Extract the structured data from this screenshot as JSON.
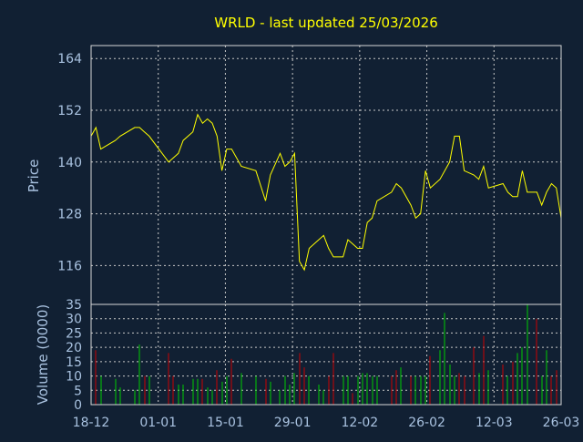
{
  "chart_data": [
    {
      "type": "line",
      "title": "WRLD - last updated 25/03/2026",
      "ylabel": "Price",
      "line_color": "#ffff00",
      "background": "#112033",
      "grid": true,
      "ylim": [
        107,
        167
      ],
      "yticks": [
        116,
        128,
        140,
        152,
        164
      ],
      "y_tick_labels": [
        "116",
        "128",
        "140",
        "152",
        "164"
      ],
      "x": [
        "2025-12-18",
        "2025-12-19",
        "2025-12-20",
        "2025-12-23",
        "2025-12-24",
        "2025-12-27",
        "2025-12-28",
        "2025-12-29",
        "2025-12-30",
        "2026-01-03",
        "2026-01-04",
        "2026-01-05",
        "2026-01-06",
        "2026-01-08",
        "2026-01-09",
        "2026-01-10",
        "2026-01-11",
        "2026-01-12",
        "2026-01-13",
        "2026-01-14",
        "2026-01-15",
        "2026-01-16",
        "2026-01-18",
        "2026-01-21",
        "2026-01-23",
        "2026-01-24",
        "2026-01-26",
        "2026-01-27",
        "2026-01-28",
        "2026-01-29",
        "2026-01-30",
        "2026-01-31",
        "2026-02-01",
        "2026-02-03",
        "2026-02-04",
        "2026-02-05",
        "2026-02-06",
        "2026-02-08",
        "2026-02-09",
        "2026-02-10",
        "2026-02-11",
        "2026-02-12",
        "2026-02-13",
        "2026-02-14",
        "2026-02-15",
        "2026-02-18",
        "2026-02-19",
        "2026-02-20",
        "2026-02-22",
        "2026-02-23",
        "2026-02-24",
        "2026-02-25",
        "2026-02-26",
        "2026-02-28",
        "2026-03-01",
        "2026-03-02",
        "2026-03-03",
        "2026-03-04",
        "2026-03-05",
        "2026-03-07",
        "2026-03-08",
        "2026-03-09",
        "2026-03-10",
        "2026-03-13",
        "2026-03-14",
        "2026-03-15",
        "2026-03-16",
        "2026-03-17",
        "2026-03-18",
        "2026-03-20",
        "2026-03-21",
        "2026-03-22",
        "2026-03-23",
        "2026-03-24",
        "2026-03-25"
      ],
      "values": [
        146,
        148,
        143,
        145,
        146,
        148,
        148,
        147,
        146,
        140,
        141,
        142,
        145,
        147,
        151,
        149,
        150,
        149,
        146,
        138,
        143,
        143,
        139,
        138,
        131,
        137,
        142,
        139,
        140,
        142,
        117,
        115,
        120,
        122,
        123,
        120,
        118,
        118,
        122,
        121,
        120,
        120,
        126,
        127,
        131,
        133,
        135,
        134,
        130,
        127,
        128,
        138,
        134,
        136,
        138,
        140,
        146,
        146,
        138,
        137,
        136,
        139,
        134,
        135,
        133,
        132,
        132,
        138,
        133,
        133,
        130,
        133,
        135,
        134,
        127
      ],
      "x_tick_labels": [
        "18-12",
        "01-01",
        "15-01",
        "29-01",
        "12-02",
        "26-02",
        "12-03",
        "26-03"
      ]
    },
    {
      "type": "bar",
      "ylabel": "Volume (0000)",
      "ylim": [
        0,
        35
      ],
      "yticks": [
        0,
        5,
        10,
        15,
        20,
        25,
        30,
        35
      ],
      "y_tick_labels": [
        "0",
        "5",
        "10",
        "15",
        "20",
        "25",
        "30",
        "35"
      ],
      "up_color": "#00cc00",
      "down_color": "#cc0000",
      "series": [
        {
          "values": [
            10,
            19,
            10,
            9,
            6,
            5,
            21,
            10,
            10,
            18,
            10,
            7,
            7,
            9,
            9,
            9,
            6,
            5,
            12,
            8,
            10,
            16,
            11,
            10,
            9,
            8,
            5,
            10,
            7,
            11,
            18,
            13,
            10,
            7,
            5,
            10,
            18,
            10,
            10,
            4,
            10,
            11,
            11,
            10,
            10,
            10,
            12,
            13,
            10,
            10,
            10,
            10,
            17,
            19,
            32,
            14,
            10,
            11,
            10,
            20,
            11,
            24,
            12,
            14,
            10,
            15,
            18,
            20,
            35,
            30,
            10,
            19,
            10,
            12,
            9
          ],
          "direction": [
            "up",
            "down",
            "up",
            "up",
            "up",
            "up",
            "up",
            "down",
            "up",
            "down",
            "down",
            "up",
            "up",
            "up",
            "up",
            "down",
            "up",
            "up",
            "down",
            "up",
            "up",
            "down",
            "up",
            "up",
            "down",
            "up",
            "up",
            "up",
            "up",
            "up",
            "down",
            "down",
            "up",
            "up",
            "up",
            "down",
            "down",
            "up",
            "up",
            "down",
            "up",
            "up",
            "up",
            "up",
            "up",
            "down",
            "down",
            "up",
            "down",
            "up",
            "up",
            "up",
            "down",
            "up",
            "up",
            "up",
            "up",
            "down",
            "down",
            "down",
            "up",
            "down",
            "up",
            "down",
            "up",
            "down",
            "up",
            "up",
            "up",
            "down",
            "up",
            "up",
            "down",
            "down",
            "down"
          ]
        }
      ]
    }
  ]
}
